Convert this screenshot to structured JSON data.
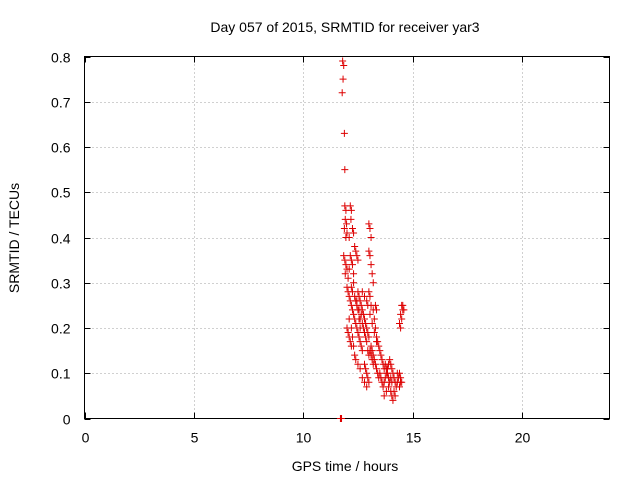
{
  "chart_data": {
    "type": "scatter",
    "title": "Day 057 of 2015, SRMTID for receiver yar3",
    "xlabel": "GPS time / hours",
    "ylabel": "SRMTID / TECUs",
    "xlim": [
      0,
      24
    ],
    "ylim": [
      0,
      0.8
    ],
    "xticks": [
      0,
      5,
      10,
      15,
      20
    ],
    "yticks": [
      0,
      0.1,
      0.2,
      0.3,
      0.4,
      0.5,
      0.6,
      0.7,
      0.8
    ],
    "grid": true,
    "legend": "none",
    "marker": "plus",
    "series": [
      {
        "name": "yar3",
        "color": "#dd0000",
        "points": [
          [
            11.7,
            0.0
          ],
          [
            11.75,
            0.0
          ],
          [
            11.72,
            0.0
          ],
          [
            11.8,
            0.79
          ],
          [
            11.85,
            0.78
          ],
          [
            11.82,
            0.75
          ],
          [
            11.78,
            0.72
          ],
          [
            11.88,
            0.63
          ],
          [
            11.9,
            0.55
          ],
          [
            11.9,
            0.47
          ],
          [
            11.95,
            0.46
          ],
          [
            11.92,
            0.44
          ],
          [
            11.98,
            0.43
          ],
          [
            11.88,
            0.42
          ],
          [
            12.0,
            0.41
          ],
          [
            11.95,
            0.4
          ],
          [
            12.1,
            0.4
          ],
          [
            12.15,
            0.47
          ],
          [
            12.2,
            0.46
          ],
          [
            12.18,
            0.44
          ],
          [
            12.25,
            0.42
          ],
          [
            12.3,
            0.41
          ],
          [
            11.85,
            0.36
          ],
          [
            11.9,
            0.35
          ],
          [
            11.95,
            0.34
          ],
          [
            12.0,
            0.33
          ],
          [
            11.92,
            0.32
          ],
          [
            12.05,
            0.31
          ],
          [
            12.1,
            0.33
          ],
          [
            12.15,
            0.36
          ],
          [
            12.2,
            0.35
          ],
          [
            12.25,
            0.34
          ],
          [
            12.3,
            0.32
          ],
          [
            12.35,
            0.38
          ],
          [
            12.4,
            0.37
          ],
          [
            12.45,
            0.36
          ],
          [
            12.5,
            0.35
          ],
          [
            12.3,
            0.3
          ],
          [
            12.0,
            0.29
          ],
          [
            12.05,
            0.28
          ],
          [
            12.1,
            0.27
          ],
          [
            12.15,
            0.26
          ],
          [
            12.2,
            0.25
          ],
          [
            12.25,
            0.24
          ],
          [
            12.3,
            0.23
          ],
          [
            12.35,
            0.22
          ],
          [
            12.4,
            0.21
          ],
          [
            12.45,
            0.2
          ],
          [
            12.5,
            0.19
          ],
          [
            12.55,
            0.18
          ],
          [
            12.6,
            0.17
          ],
          [
            12.65,
            0.16
          ],
          [
            12.7,
            0.15
          ],
          [
            12.1,
            0.22
          ],
          [
            12.2,
            0.2
          ],
          [
            12.25,
            0.18
          ],
          [
            12.3,
            0.16
          ],
          [
            12.35,
            0.14
          ],
          [
            12.4,
            0.13
          ],
          [
            12.5,
            0.12
          ],
          [
            12.6,
            0.11
          ],
          [
            12.5,
            0.28
          ],
          [
            12.55,
            0.27
          ],
          [
            12.6,
            0.26
          ],
          [
            12.65,
            0.25
          ],
          [
            12.7,
            0.24
          ],
          [
            12.75,
            0.23
          ],
          [
            12.8,
            0.22
          ],
          [
            12.85,
            0.21
          ],
          [
            12.9,
            0.2
          ],
          [
            12.95,
            0.19
          ],
          [
            13.0,
            0.18
          ],
          [
            12.7,
            0.21
          ],
          [
            12.75,
            0.2
          ],
          [
            12.8,
            0.19
          ],
          [
            12.85,
            0.18
          ],
          [
            12.9,
            0.17
          ],
          [
            12.6,
            0.22
          ],
          [
            12.65,
            0.23
          ],
          [
            12.55,
            0.24
          ],
          [
            12.45,
            0.25
          ],
          [
            12.4,
            0.26
          ],
          [
            13.0,
            0.43
          ],
          [
            13.05,
            0.42
          ],
          [
            13.1,
            0.4
          ],
          [
            13.0,
            0.37
          ],
          [
            13.05,
            0.36
          ],
          [
            13.1,
            0.34
          ],
          [
            13.15,
            0.32
          ],
          [
            13.2,
            0.3
          ],
          [
            13.0,
            0.28
          ],
          [
            13.05,
            0.27
          ],
          [
            13.1,
            0.25
          ],
          [
            13.2,
            0.24
          ],
          [
            13.3,
            0.25
          ],
          [
            13.35,
            0.24
          ],
          [
            13.25,
            0.22
          ],
          [
            13.3,
            0.2
          ],
          [
            13.35,
            0.18
          ],
          [
            13.4,
            0.17
          ],
          [
            13.45,
            0.16
          ],
          [
            13.5,
            0.15
          ],
          [
            13.55,
            0.14
          ],
          [
            13.6,
            0.13
          ],
          [
            13.65,
            0.12
          ],
          [
            13.7,
            0.11
          ],
          [
            13.1,
            0.16
          ],
          [
            13.15,
            0.15
          ],
          [
            13.2,
            0.14
          ],
          [
            13.25,
            0.13
          ],
          [
            13.3,
            0.12
          ],
          [
            13.35,
            0.11
          ],
          [
            13.4,
            0.1
          ],
          [
            13.45,
            0.09
          ],
          [
            12.8,
            0.12
          ],
          [
            12.85,
            0.11
          ],
          [
            12.9,
            0.1
          ],
          [
            12.95,
            0.09
          ],
          [
            13.0,
            0.08
          ],
          [
            12.7,
            0.09
          ],
          [
            12.8,
            0.08
          ],
          [
            12.9,
            0.07
          ],
          [
            13.5,
            0.1
          ],
          [
            13.55,
            0.09
          ],
          [
            13.6,
            0.08
          ],
          [
            13.65,
            0.07
          ],
          [
            13.7,
            0.08
          ],
          [
            13.75,
            0.09
          ],
          [
            13.8,
            0.1
          ],
          [
            13.85,
            0.11
          ],
          [
            13.9,
            0.12
          ],
          [
            13.95,
            0.13
          ],
          [
            14.0,
            0.12
          ],
          [
            14.05,
            0.11
          ],
          [
            14.1,
            0.1
          ],
          [
            14.15,
            0.09
          ],
          [
            14.2,
            0.08
          ],
          [
            14.25,
            0.07
          ],
          [
            14.0,
            0.06
          ],
          [
            14.05,
            0.05
          ],
          [
            14.1,
            0.04
          ],
          [
            14.15,
            0.06
          ],
          [
            14.2,
            0.05
          ],
          [
            13.9,
            0.07
          ],
          [
            13.8,
            0.06
          ],
          [
            13.7,
            0.05
          ],
          [
            14.3,
            0.08
          ],
          [
            14.35,
            0.09
          ],
          [
            14.4,
            0.1
          ],
          [
            14.45,
            0.09
          ],
          [
            14.5,
            0.08
          ],
          [
            14.3,
            0.1
          ],
          [
            14.4,
            0.07
          ],
          [
            14.45,
            0.08
          ],
          [
            14.5,
            0.25
          ],
          [
            14.55,
            0.24
          ],
          [
            14.45,
            0.23
          ],
          [
            14.5,
            0.22
          ],
          [
            14.4,
            0.21
          ],
          [
            14.45,
            0.2
          ],
          [
            14.55,
            0.25
          ],
          [
            14.6,
            0.24
          ],
          [
            12.2,
            0.29
          ],
          [
            12.25,
            0.28
          ],
          [
            12.35,
            0.27
          ],
          [
            12.45,
            0.26
          ],
          [
            12.5,
            0.24
          ],
          [
            12.55,
            0.22
          ],
          [
            12.6,
            0.2
          ],
          [
            12.95,
            0.15
          ],
          [
            13.0,
            0.14
          ],
          [
            13.05,
            0.15
          ],
          [
            13.1,
            0.14
          ],
          [
            13.15,
            0.13
          ],
          [
            13.2,
            0.12
          ],
          [
            13.75,
            0.12
          ],
          [
            13.8,
            0.11
          ],
          [
            13.85,
            0.1
          ],
          [
            13.9,
            0.09
          ],
          [
            13.95,
            0.08
          ],
          [
            14.0,
            0.09
          ],
          [
            14.05,
            0.08
          ],
          [
            12.05,
            0.19
          ],
          [
            12.1,
            0.18
          ],
          [
            12.15,
            0.17
          ],
          [
            12.2,
            0.16
          ],
          [
            12.0,
            0.2
          ],
          [
            12.7,
            0.28
          ],
          [
            12.8,
            0.27
          ],
          [
            12.9,
            0.26
          ],
          [
            12.95,
            0.25
          ],
          [
            13.05,
            0.23
          ],
          [
            13.15,
            0.21
          ],
          [
            13.25,
            0.19
          ],
          [
            13.35,
            0.17
          ]
        ]
      }
    ]
  }
}
